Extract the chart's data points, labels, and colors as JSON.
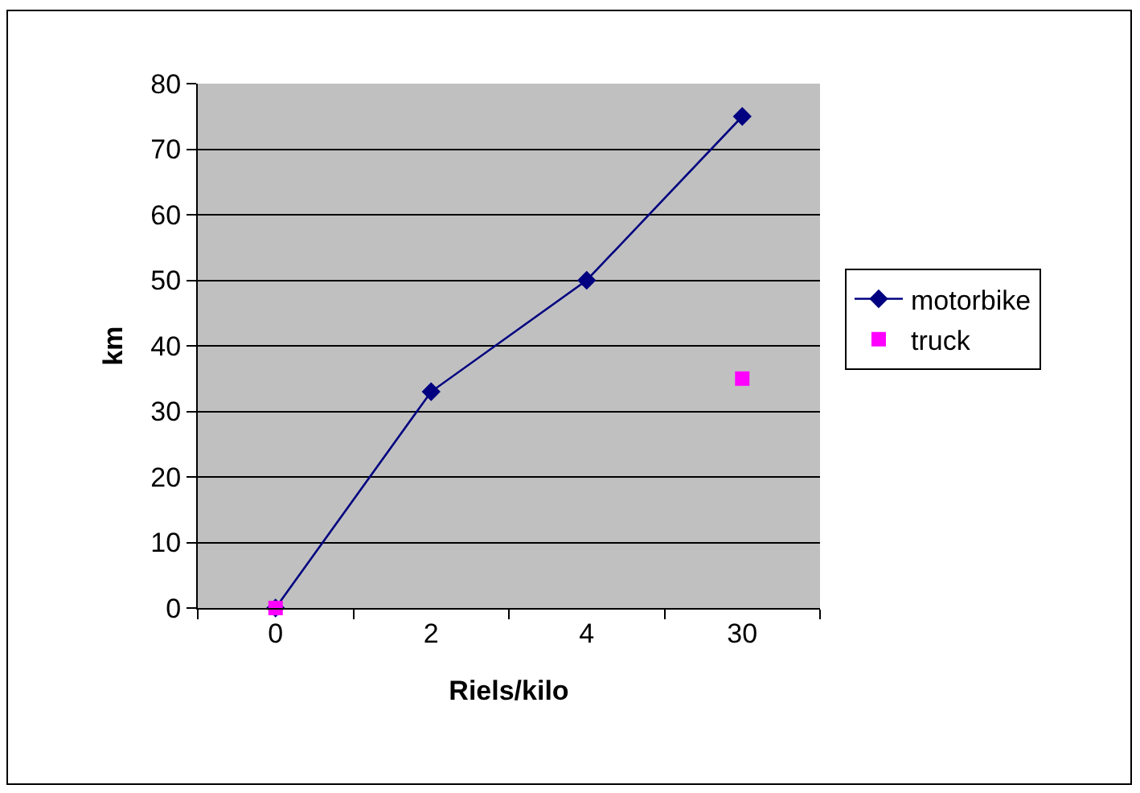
{
  "chart_data": {
    "type": "line",
    "xlabel": "Riels/kilo",
    "ylabel": "km",
    "categories": [
      "0",
      "2",
      "4",
      "30"
    ],
    "series": [
      {
        "name": "motorbike",
        "color": "#000080",
        "values": [
          0,
          33,
          50,
          75
        ],
        "marker": "diamond"
      },
      {
        "name": "truck",
        "type": "scatter",
        "color": "#ff00ff",
        "values": [
          0,
          null,
          null,
          35
        ],
        "marker": "square"
      }
    ],
    "ylim": [
      0,
      80
    ],
    "yticks": [
      0,
      10,
      20,
      30,
      40,
      50,
      60,
      70,
      80
    ],
    "grid": "y",
    "legend": "right"
  }
}
